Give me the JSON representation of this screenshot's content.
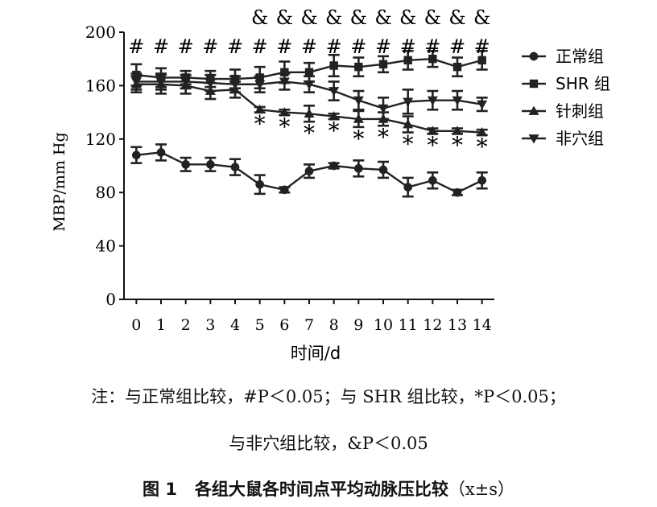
{
  "chart_data": {
    "type": "line",
    "xlabel": "时间/d",
    "ylabel": "MBP/mm Hg",
    "x": [
      0,
      1,
      2,
      3,
      4,
      5,
      6,
      7,
      8,
      9,
      10,
      11,
      12,
      13,
      14
    ],
    "xlim": [
      -0.5,
      14.5
    ],
    "ylim": [
      0,
      200
    ],
    "yticks": [
      0,
      40,
      80,
      120,
      160,
      200
    ],
    "series": [
      {
        "name": "正常组",
        "marker": "circle",
        "values": [
          108,
          110,
          101,
          101,
          99,
          86,
          82,
          96,
          100,
          98,
          97,
          84,
          89,
          80,
          89
        ],
        "errors": [
          6,
          6,
          5,
          5,
          6,
          7,
          2,
          5,
          2,
          6,
          6,
          7,
          6,
          2,
          6
        ]
      },
      {
        "name": "SHR 组",
        "marker": "square",
        "values": [
          168,
          166,
          166,
          165,
          165,
          166,
          170,
          170,
          175,
          174,
          176,
          179,
          180,
          174,
          179
        ],
        "errors": [
          8,
          7,
          5,
          6,
          7,
          8,
          8,
          7,
          8,
          7,
          6,
          7,
          6,
          7,
          7
        ]
      },
      {
        "name": "针刺组",
        "marker": "triangle-up",
        "values": [
          161,
          161,
          160,
          156,
          157,
          142,
          140,
          139,
          137,
          135,
          135,
          131,
          126,
          126,
          125
        ],
        "errors": [
          6,
          7,
          6,
          6,
          6,
          2,
          2,
          6,
          2,
          6,
          5,
          6,
          2,
          2,
          2
        ]
      },
      {
        "name": "非穴组",
        "marker": "triangle-down",
        "values": [
          163,
          163,
          163,
          162,
          161,
          161,
          163,
          161,
          156,
          149,
          143,
          148,
          149,
          149,
          146
        ],
        "errors": [
          6,
          6,
          5,
          6,
          6,
          6,
          6,
          6,
          7,
          7,
          8,
          9,
          7,
          7,
          5
        ]
      }
    ],
    "annotations": {
      "hash": {
        "symbol": "#",
        "x": [
          0,
          1,
          2,
          3,
          4,
          5,
          6,
          7,
          8,
          9,
          10,
          11,
          12,
          13,
          14
        ]
      },
      "amp": {
        "symbol": "&",
        "x": [
          5,
          6,
          7,
          8,
          9,
          10,
          11,
          12,
          13,
          14
        ]
      },
      "star": {
        "symbol": "*",
        "x": [
          5,
          6,
          7,
          8,
          9,
          10,
          11,
          12,
          13,
          14
        ]
      }
    },
    "legend_position": "right",
    "grid": false
  },
  "note_line1": "注：与正常组比较，#P＜0.05；与 SHR 组比较，*P＜0.05；",
  "note_line2": "与非穴组比较，&P＜0.05",
  "caption_label": "图 1",
  "caption_title": "各组大鼠各时间点平均动脉压比较",
  "caption_ms": "（x±s）"
}
